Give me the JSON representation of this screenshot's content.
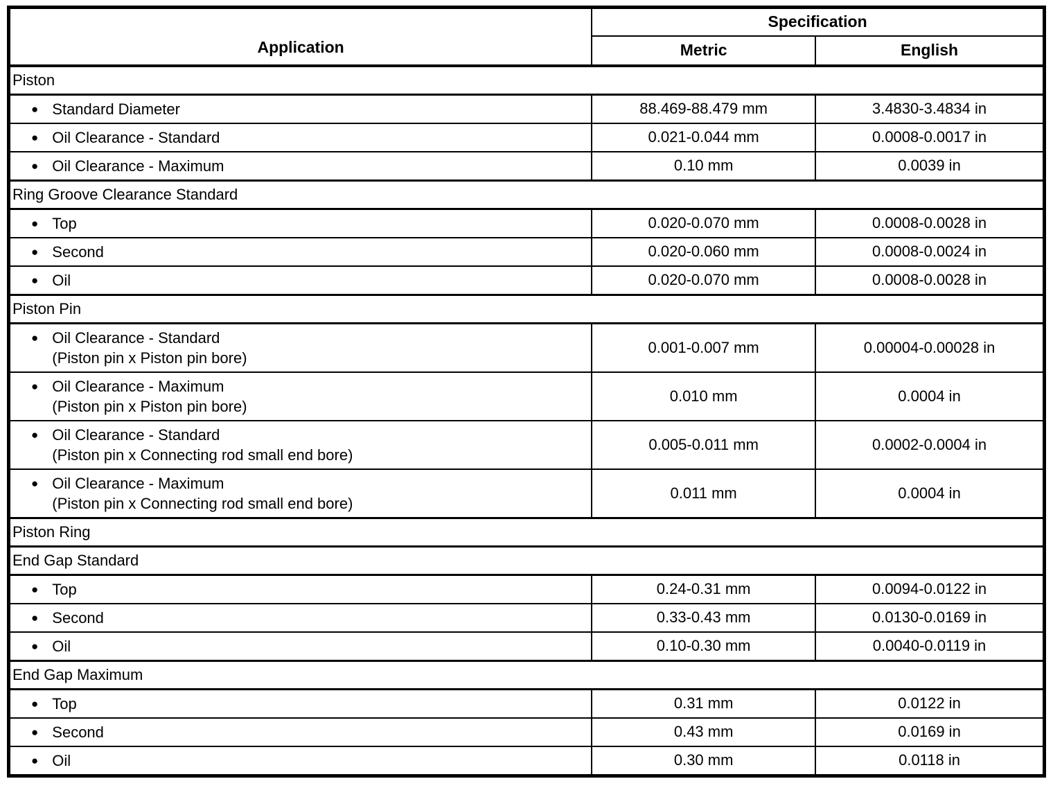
{
  "table": {
    "header": {
      "application": "Application",
      "specification": "Specification",
      "metric": "Metric",
      "english": "English"
    },
    "bullet": "●",
    "rows": [
      {
        "type": "section",
        "label": "Piston"
      },
      {
        "type": "data",
        "label": "Standard Diameter",
        "metric": "88.469-88.479 mm",
        "english": "3.4830-3.4834 in"
      },
      {
        "type": "data",
        "label": "Oil Clearance - Standard",
        "metric": "0.021-0.044 mm",
        "english": "0.0008-0.0017 in"
      },
      {
        "type": "data",
        "label": "Oil Clearance - Maximum",
        "metric": "0.10 mm",
        "english": "0.0039 in"
      },
      {
        "type": "section",
        "label": "Ring Groove Clearance Standard"
      },
      {
        "type": "data",
        "label": "Top",
        "metric": "0.020-0.070 mm",
        "english": "0.0008-0.0028 in"
      },
      {
        "type": "data",
        "label": "Second",
        "metric": "0.020-0.060 mm",
        "english": "0.0008-0.0024 in"
      },
      {
        "type": "data",
        "label": "Oil",
        "metric": "0.020-0.070 mm",
        "english": "0.0008-0.0028 in"
      },
      {
        "type": "section",
        "label": "Piston Pin"
      },
      {
        "type": "data",
        "label": "Oil Clearance - Standard",
        "sublabel": "(Piston pin x Piston pin bore)",
        "metric": "0.001-0.007 mm",
        "english": "0.00004-0.00028 in"
      },
      {
        "type": "data",
        "label": "Oil Clearance - Maximum",
        "sublabel": "(Piston pin x Piston pin bore)",
        "metric": "0.010 mm",
        "english": "0.0004 in"
      },
      {
        "type": "data",
        "label": "Oil Clearance - Standard",
        "sublabel": "(Piston pin x Connecting rod small end bore)",
        "metric": "0.005-0.011 mm",
        "english": "0.0002-0.0004 in"
      },
      {
        "type": "data",
        "label": "Oil Clearance - Maximum",
        "sublabel": "(Piston pin x Connecting rod small end bore)",
        "metric": "0.011 mm",
        "english": "0.0004 in"
      },
      {
        "type": "section",
        "label": "Piston Ring"
      },
      {
        "type": "section",
        "label": "End Gap Standard"
      },
      {
        "type": "data",
        "label": "Top",
        "metric": "0.24-0.31 mm",
        "english": "0.0094-0.0122 in"
      },
      {
        "type": "data",
        "label": "Second",
        "metric": "0.33-0.43 mm",
        "english": "0.0130-0.0169 in"
      },
      {
        "type": "data",
        "label": "Oil",
        "metric": "0.10-0.30 mm",
        "english": "0.0040-0.0119 in"
      },
      {
        "type": "section",
        "label": "End Gap Maximum"
      },
      {
        "type": "data",
        "label": "Top",
        "metric": "0.31 mm",
        "english": "0.0122 in"
      },
      {
        "type": "data",
        "label": "Second",
        "metric": "0.43 mm",
        "english": "0.0169 in"
      },
      {
        "type": "data",
        "label": "Oil",
        "metric": "0.30 mm",
        "english": "0.0118 in"
      }
    ]
  }
}
